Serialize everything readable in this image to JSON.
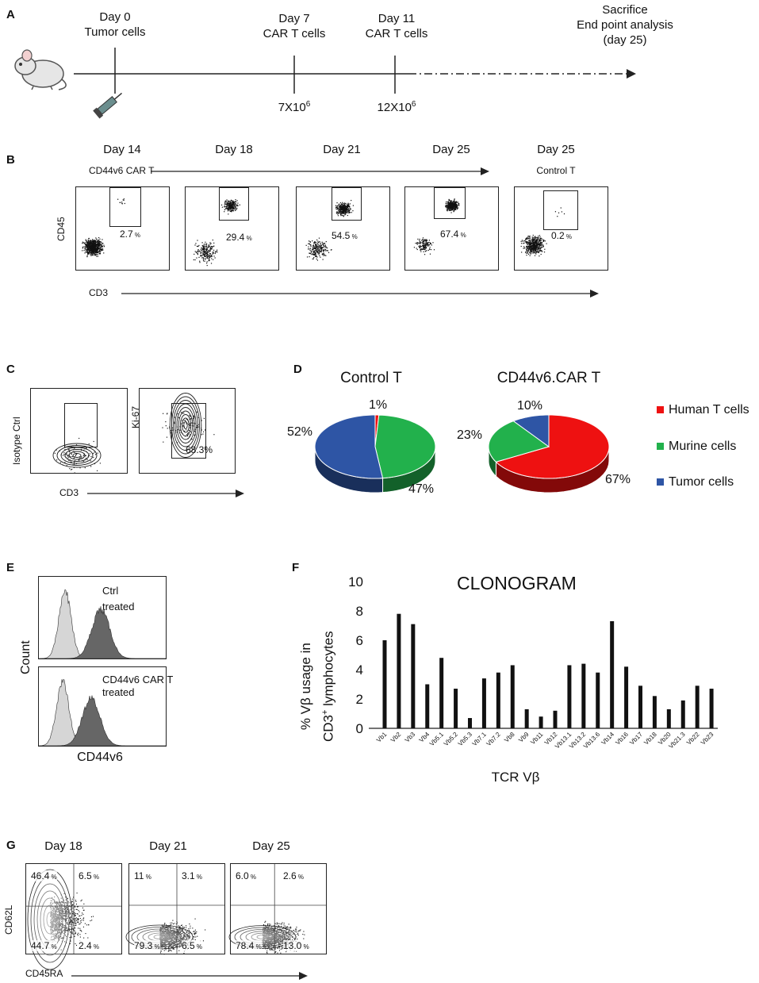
{
  "panelA": {
    "letter": "A",
    "events": [
      {
        "day": "Day 0",
        "desc": "Tumor cells",
        "dose": ""
      },
      {
        "day": "Day 7",
        "desc": "CAR T cells",
        "dose": "7X10",
        "dose_exp": "6"
      },
      {
        "day": "Day 11",
        "desc": "CAR T cells",
        "dose": "12X10",
        "dose_exp": "6"
      }
    ],
    "end": {
      "line1": "Sacrifice",
      "line2": "End point analysis",
      "line3": "(day 25)"
    }
  },
  "panelB": {
    "letter": "B",
    "days": [
      "Day 14",
      "Day 18",
      "Day 21",
      "Day 25",
      "Day 25"
    ],
    "group_label": "CD44v6 CAR T",
    "control_label": "Control T",
    "ylabel": "CD45",
    "xlabel": "CD3",
    "values": [
      "2.7",
      "29.4",
      "54.5",
      "67.4",
      "0.2"
    ],
    "unit": "%"
  },
  "panelC": {
    "letter": "C",
    "ylabel1": "Isotype Ctrl",
    "ylabel2": "Ki-67",
    "xlabel": "CD3",
    "value": "68.3%"
  },
  "panelD": {
    "letter": "D",
    "legend": [
      {
        "label": "Human T cells",
        "color": "#ee1111"
      },
      {
        "label": "Murine cells",
        "color": "#22b14c"
      },
      {
        "label": "Tumor cells",
        "color": "#2e55a5"
      }
    ]
  },
  "panelE": {
    "letter": "E",
    "ylabel": "Count",
    "xlabel": "CD44v6",
    "top_label1": "Ctrl",
    "top_label2": "treated",
    "bottom_label1": "CD44v6 CAR T",
    "bottom_label2": "treated"
  },
  "panelF": {
    "letter": "F"
  },
  "panelG": {
    "letter": "G",
    "days": [
      "Day 18",
      "Day 21",
      "Day 25"
    ],
    "ylabel": "CD62L",
    "xlabel": "CD45RA",
    "quadrants": [
      {
        "ul": "46.4",
        "ur": "6.5",
        "ll": "44.7",
        "lr": "2.4"
      },
      {
        "ul": "11",
        "ur": "3.1",
        "ll": "79.3",
        "lr": "6.5"
      },
      {
        "ul": "6.0",
        "ur": "2.6",
        "ll": "78.4",
        "lr": "13.0"
      }
    ],
    "unit": "%"
  },
  "chart_data": [
    {
      "type": "pie",
      "title": "Control T",
      "categories": [
        "Human T cells",
        "Murine cells",
        "Tumor cells"
      ],
      "values": [
        1,
        47,
        52
      ],
      "labels": [
        "1%",
        "47%",
        "52%"
      ],
      "colors": [
        "#ee1111",
        "#22b14c",
        "#2e55a5"
      ]
    },
    {
      "type": "pie",
      "title": "CD44v6.CAR T",
      "categories": [
        "Human T cells",
        "Murine cells",
        "Tumor cells"
      ],
      "values": [
        67,
        23,
        10
      ],
      "labels": [
        "67%",
        "23%",
        "10%"
      ],
      "colors": [
        "#ee1111",
        "#22b14c",
        "#2e55a5"
      ]
    },
    {
      "type": "bar",
      "title": "CLONOGRAM",
      "xlabel": "TCR Vβ",
      "ylabel_line1": "% Vβ usage in",
      "ylabel_line2": "CD3",
      "ylabel_sup": "+",
      "ylabel_line2_rest": " lymphocytes",
      "ylim": [
        0,
        10
      ],
      "yticks": [
        "0",
        "2",
        "4",
        "6",
        "8",
        "10"
      ],
      "categories": [
        "Vb1",
        "Vb2",
        "Vb3",
        "Vb4",
        "Vb5.1",
        "Vb5.2",
        "Vb5.3",
        "Vb7.1",
        "Vb7.2",
        "Vb8",
        "Vb9",
        "Vb11",
        "Vb12",
        "Vb13.1",
        "Vb13.2",
        "Vb13.6",
        "Vb14",
        "Vb16",
        "Vb17",
        "Vb18",
        "Vb20",
        "Vb21.3",
        "Vb22",
        "Vb23"
      ],
      "values": [
        6.0,
        7.8,
        7.1,
        3.0,
        4.8,
        2.7,
        0.7,
        3.4,
        3.8,
        4.3,
        1.3,
        0.8,
        1.2,
        4.3,
        4.4,
        3.8,
        7.3,
        4.2,
        2.9,
        2.2,
        1.3,
        1.9,
        2.9,
        2.7
      ]
    }
  ]
}
